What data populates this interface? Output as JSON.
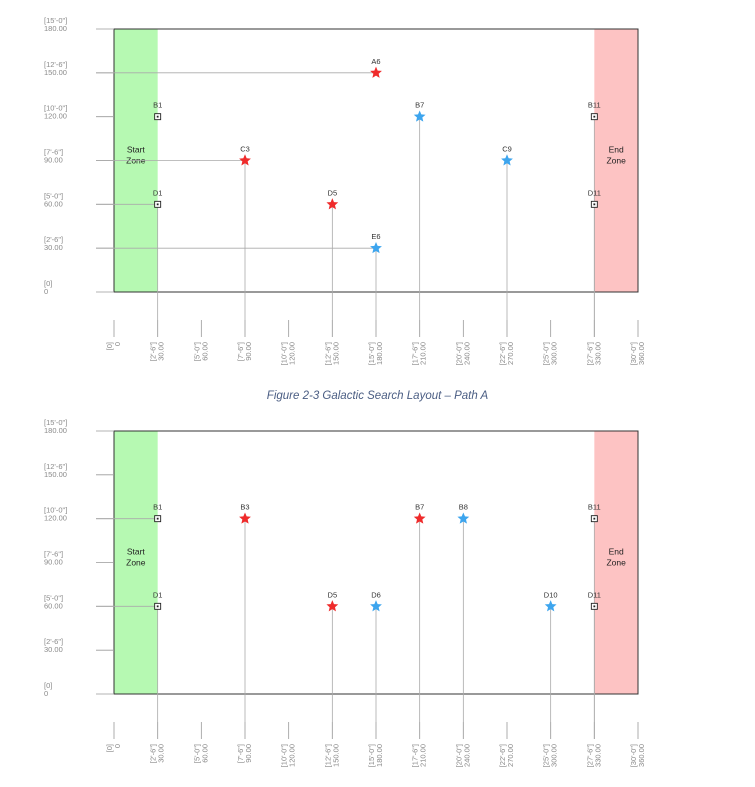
{
  "caption": "Figure 2-3 Galactic Search Layout – Path A",
  "colors": {
    "red": "#ef2b2b",
    "blue": "#3da5ee",
    "start": "#b6f9b2",
    "end": "#fdc3c3"
  },
  "x_ticks": [
    {
      "value": 0,
      "ft": "[0]",
      "in": "0"
    },
    {
      "value": 30,
      "ft": "[2'-6\"]",
      "in": "30.00"
    },
    {
      "value": 60,
      "ft": "[5'-0\"]",
      "in": "60.00"
    },
    {
      "value": 90,
      "ft": "[7'-6\"]",
      "in": "90.00"
    },
    {
      "value": 120,
      "ft": "[10'-0\"]",
      "in": "120.00"
    },
    {
      "value": 150,
      "ft": "[12'-6\"]",
      "in": "150.00"
    },
    {
      "value": 180,
      "ft": "[15'-0\"]",
      "in": "180.00"
    },
    {
      "value": 210,
      "ft": "[17'-6\"]",
      "in": "210.00"
    },
    {
      "value": 240,
      "ft": "[20'-0\"]",
      "in": "240.00"
    },
    {
      "value": 270,
      "ft": "[22'-6\"]",
      "in": "270.00"
    },
    {
      "value": 300,
      "ft": "[25'-0\"]",
      "in": "300.00"
    },
    {
      "value": 330,
      "ft": "[27'-6\"]",
      "in": "330.00"
    },
    {
      "value": 360,
      "ft": "[30'-0\"]",
      "in": "360.00"
    }
  ],
  "y_ticks": [
    {
      "value": 0,
      "ft": "[0]",
      "in": "0"
    },
    {
      "value": 30,
      "ft": "[2'-6\"]",
      "in": "30.00"
    },
    {
      "value": 60,
      "ft": "[5'-0\"]",
      "in": "60.00"
    },
    {
      "value": 90,
      "ft": "[7'-6\"]",
      "in": "90.00"
    },
    {
      "value": 120,
      "ft": "[10'-0\"]",
      "in": "120.00"
    },
    {
      "value": 150,
      "ft": "[12'-6\"]",
      "in": "150.00"
    },
    {
      "value": 180,
      "ft": "[15'-0\"]",
      "in": "180.00"
    }
  ],
  "zones": {
    "start": {
      "x0": 0,
      "x1": 30,
      "line1": "Start",
      "line2": "Zone"
    },
    "end": {
      "x0": 330,
      "x1": 360,
      "line1": "End",
      "line2": "Zone"
    }
  },
  "diagrams": [
    {
      "id": "path-a",
      "markers": [
        {
          "label": "B1",
          "x": 30,
          "y": 120
        },
        {
          "label": "D1",
          "x": 30,
          "y": 60
        },
        {
          "label": "B11",
          "x": 330,
          "y": 120
        },
        {
          "label": "D11",
          "x": 330,
          "y": 60
        }
      ],
      "stars": [
        {
          "label": "A6",
          "x": 180,
          "y": 150,
          "color": "red",
          "leader": "horizontal"
        },
        {
          "label": "C3",
          "x": 90,
          "y": 90,
          "color": "red",
          "leader": "both"
        },
        {
          "label": "D5",
          "x": 150,
          "y": 60,
          "color": "red",
          "leader": "vertical"
        },
        {
          "label": "B7",
          "x": 210,
          "y": 120,
          "color": "blue",
          "leader": "vertical"
        },
        {
          "label": "C9",
          "x": 270,
          "y": 90,
          "color": "blue",
          "leader": "vertical"
        },
        {
          "label": "E6",
          "x": 180,
          "y": 30,
          "color": "blue",
          "leader": "both"
        }
      ],
      "marker_leaders": [
        {
          "label": "D1",
          "leader": "horizontal"
        }
      ],
      "vertical_guides_for_markers": [
        "B11",
        "D11"
      ]
    },
    {
      "id": "path-b",
      "markers": [
        {
          "label": "B1",
          "x": 30,
          "y": 120
        },
        {
          "label": "D1",
          "x": 30,
          "y": 60
        },
        {
          "label": "B11",
          "x": 330,
          "y": 120
        },
        {
          "label": "D11",
          "x": 330,
          "y": 60
        }
      ],
      "stars": [
        {
          "label": "B3",
          "x": 90,
          "y": 120,
          "color": "red",
          "leader": "vertical"
        },
        {
          "label": "D5",
          "x": 150,
          "y": 60,
          "color": "red",
          "leader": "vertical"
        },
        {
          "label": "B7",
          "x": 210,
          "y": 120,
          "color": "red",
          "leader": "vertical"
        },
        {
          "label": "B8",
          "x": 240,
          "y": 120,
          "color": "blue",
          "leader": "vertical"
        },
        {
          "label": "D6",
          "x": 180,
          "y": 60,
          "color": "blue",
          "leader": "vertical"
        },
        {
          "label": "D10",
          "x": 300,
          "y": 60,
          "color": "blue",
          "leader": "vertical"
        }
      ],
      "marker_leaders": [
        {
          "label": "B1",
          "leader": "horizontal"
        },
        {
          "label": "D1",
          "leader": "horizontal"
        }
      ],
      "vertical_guides_for_markers": [
        "B11",
        "D11"
      ]
    }
  ]
}
